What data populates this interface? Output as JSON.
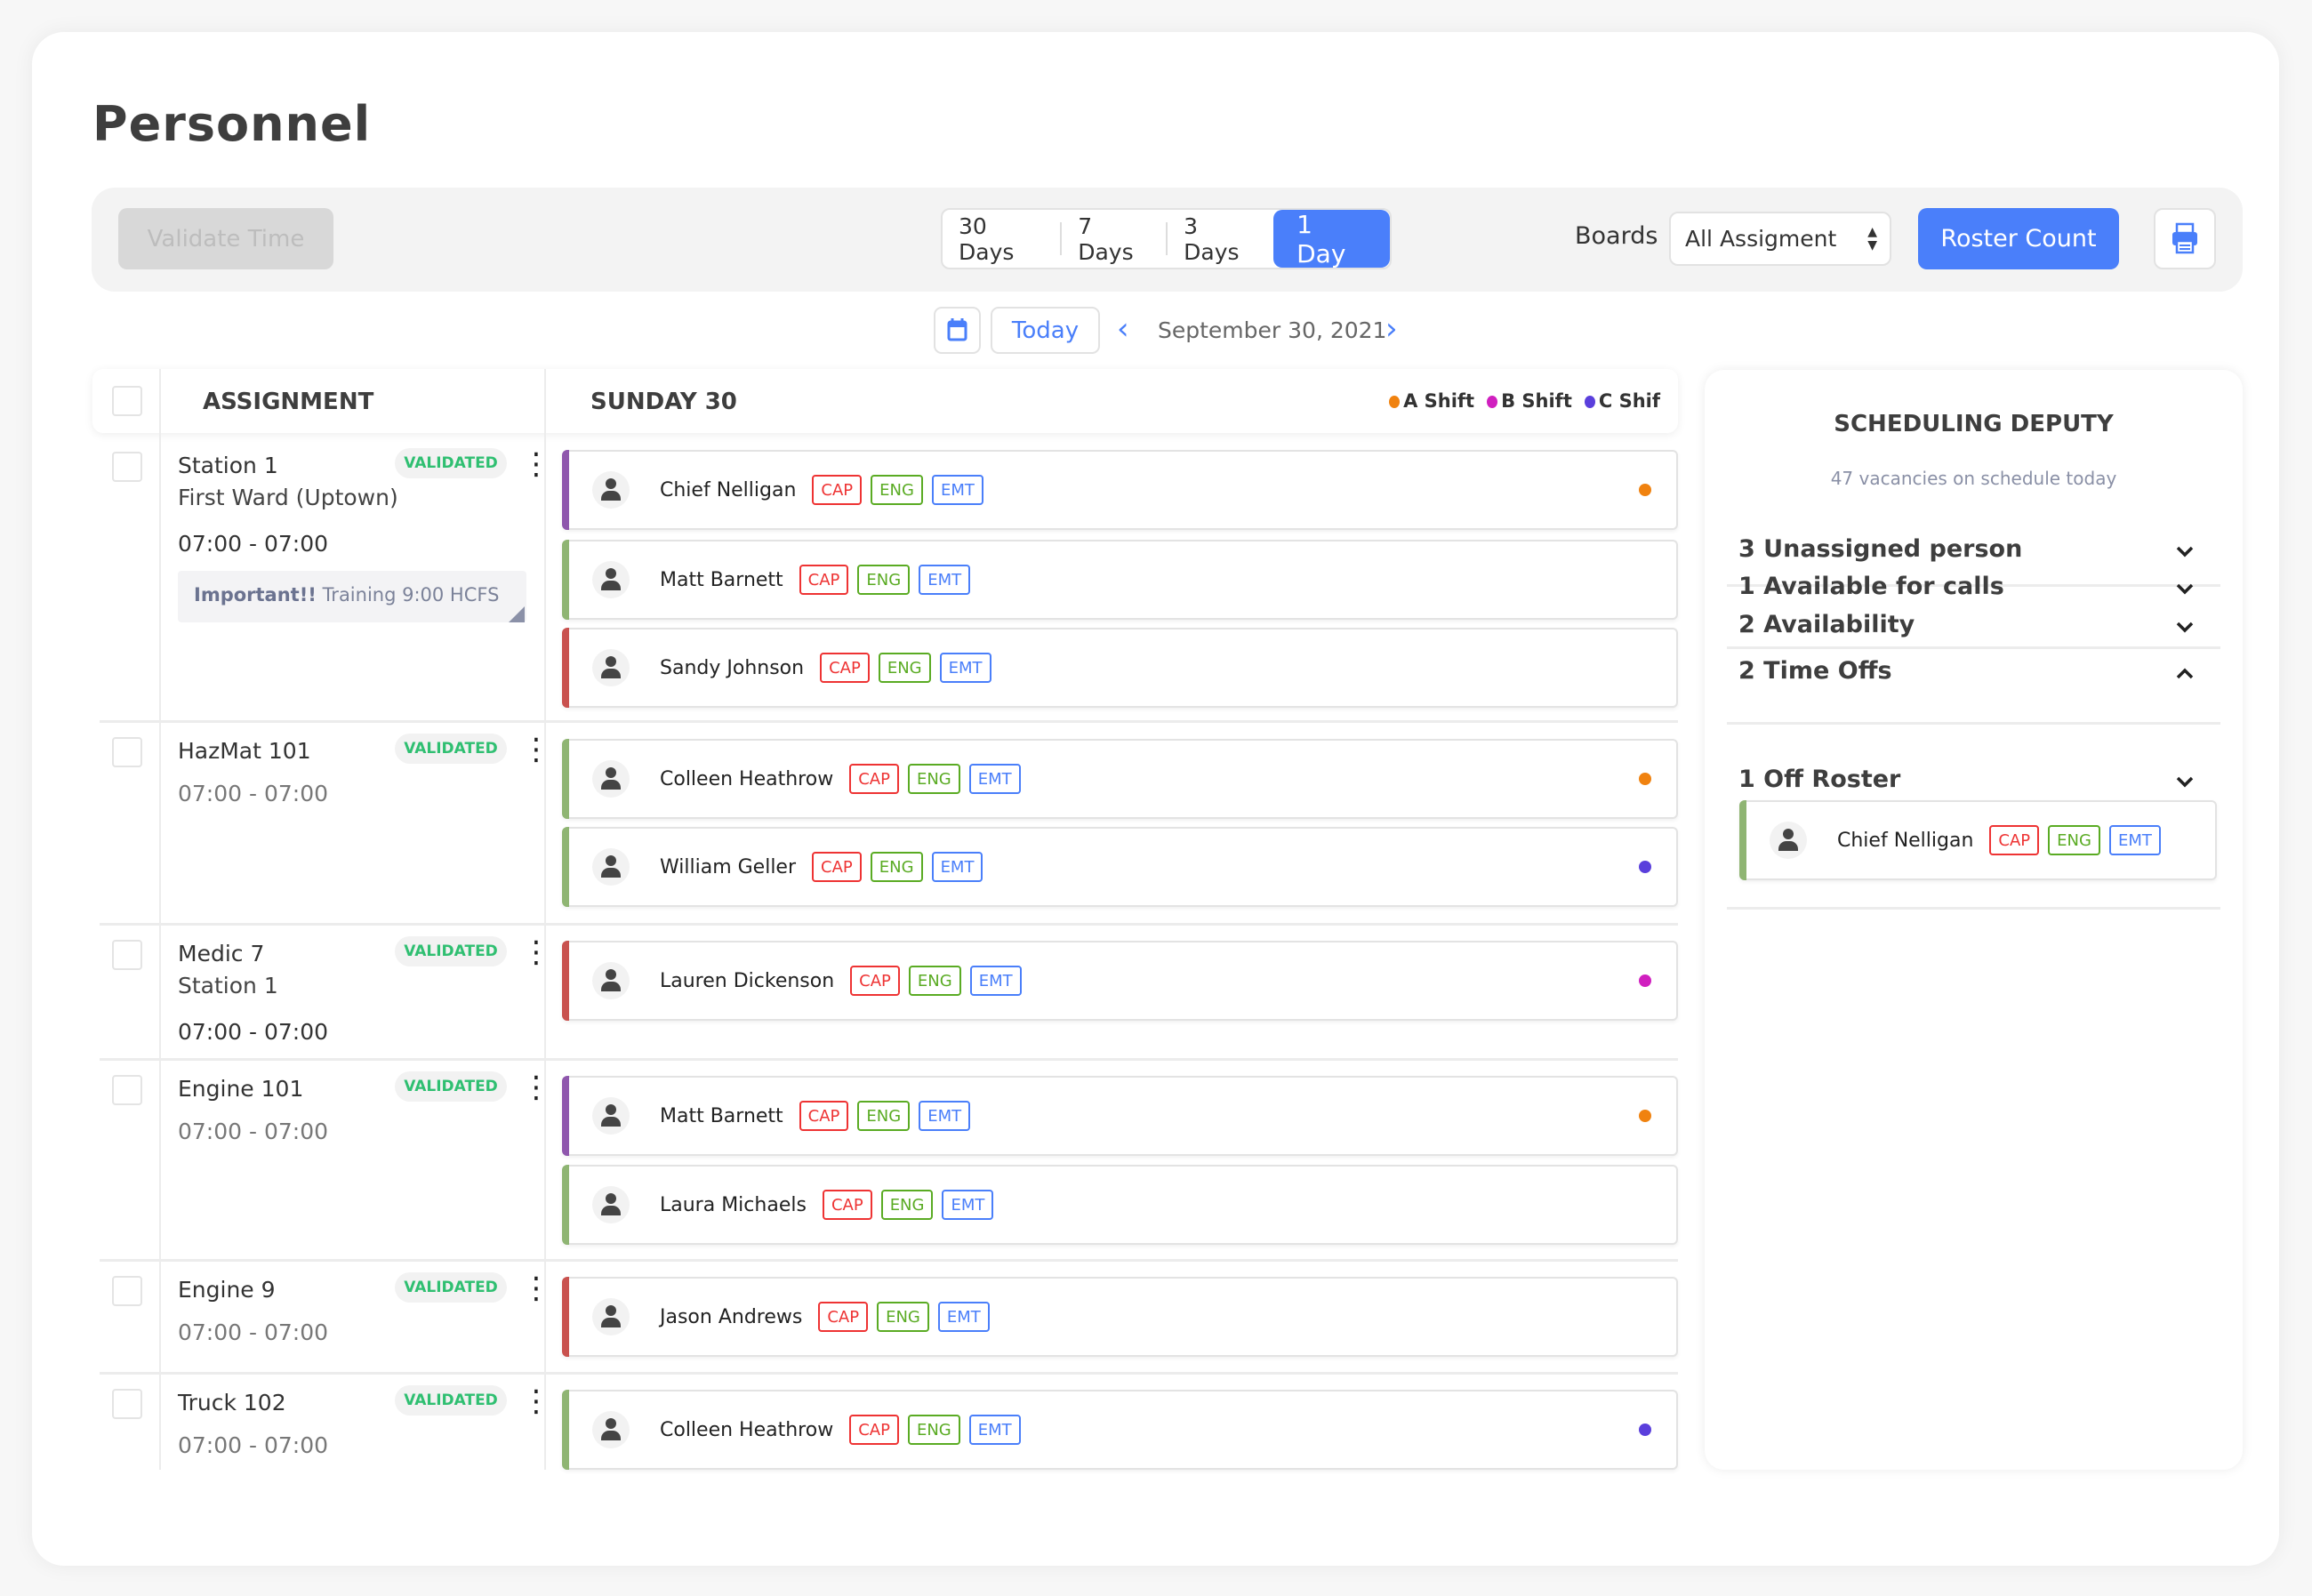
{
  "page": {
    "title": "Personnel"
  },
  "toolbar": {
    "validate_label": "Validate Time",
    "range_options": [
      "30 Days",
      "7 Days",
      "3 Days",
      "1 Day"
    ],
    "range_selected": "1 Day",
    "boards_label": "Boards",
    "boards_select": "All Assigment",
    "roster_count_label": "Roster Count",
    "print_icon": "printer-icon"
  },
  "datenav": {
    "calendar_icon": "calendar-icon",
    "today_label": "Today",
    "date": "September 30, 2021"
  },
  "table": {
    "col_assignment": "ASSIGNMENT",
    "col_day": "SUNDAY 30",
    "legend": [
      {
        "label": "A Shift",
        "color": "#f0820f"
      },
      {
        "label": "B Shift",
        "color": "#d01fbf"
      },
      {
        "label": "C Shif",
        "color": "#5a3fdc"
      }
    ],
    "tags": [
      "CAP",
      "ENG",
      "EMT"
    ],
    "groups": [
      {
        "name": "Station 1",
        "sub": "First Ward (Uptown)",
        "time": "07:00 - 07:00",
        "time_dark": true,
        "status": "VALIDATED",
        "note_bold": "Important!!",
        "note": "Training 9:00 HCFS",
        "people": [
          {
            "name": "Chief Nelligan",
            "stripe": "#8f57ad",
            "dot": "#f0820f"
          },
          {
            "name": "Matt Barnett",
            "stripe": "#8fb573",
            "dot": null
          },
          {
            "name": "Sandy Johnson",
            "stripe": "#c9524f",
            "dot": null
          }
        ]
      },
      {
        "name": "HazMat 101",
        "time": "07:00 - 07:00",
        "time_dark": false,
        "status": "VALIDATED",
        "people": [
          {
            "name": "Colleen Heathrow",
            "stripe": "#8fb573",
            "dot": "#f0820f"
          },
          {
            "name": "William Geller",
            "stripe": "#8fb573",
            "dot": "#5a3fdc"
          }
        ]
      },
      {
        "name": "Medic 7",
        "sub": "Station 1",
        "time": "07:00 - 07:00",
        "time_dark": true,
        "status": "VALIDATED",
        "people": [
          {
            "name": "Lauren Dickenson",
            "stripe": "#c9524f",
            "dot": "#d01fbf"
          }
        ]
      },
      {
        "name": "Engine 101",
        "time": "07:00 - 07:00",
        "time_dark": false,
        "status": "VALIDATED",
        "people": [
          {
            "name": "Matt Barnett",
            "stripe": "#8f57ad",
            "dot": "#f0820f"
          },
          {
            "name": "Laura Michaels",
            "stripe": "#8fb573",
            "dot": null
          }
        ]
      },
      {
        "name": "Engine 9",
        "time": "07:00 - 07:00",
        "time_dark": false,
        "status": "VALIDATED",
        "people": [
          {
            "name": "Jason Andrews",
            "stripe": "#c9524f",
            "dot": null
          }
        ]
      },
      {
        "name": "Truck 102",
        "time": "07:00 - 07:00",
        "time_dark": false,
        "status": "VALIDATED",
        "people": [
          {
            "name": "Colleen Heathrow",
            "stripe": "#8fb573",
            "dot": "#5a3fdc"
          }
        ]
      }
    ]
  },
  "panel": {
    "title": "SCHEDULING DEPUTY",
    "subtitle": "47 vacancies on schedule today",
    "sections": [
      {
        "label": "3 Unassigned person",
        "expanded": false
      },
      {
        "label": "1 Available for calls",
        "expanded": false
      },
      {
        "label": "2 Availability",
        "expanded": false
      },
      {
        "label": "2 Time Offs",
        "expanded": true,
        "people": [
          {
            "name": "Chief Nelligan",
            "stripe": "#8fb573"
          }
        ]
      },
      {
        "label": "1 Off Roster",
        "expanded": false
      }
    ]
  },
  "colors": {
    "accent": "#4a7ffa",
    "validated": "#2fbf71",
    "cap": "#ee3333",
    "eng": "#5aab23",
    "emt": "#4a7ffa"
  }
}
